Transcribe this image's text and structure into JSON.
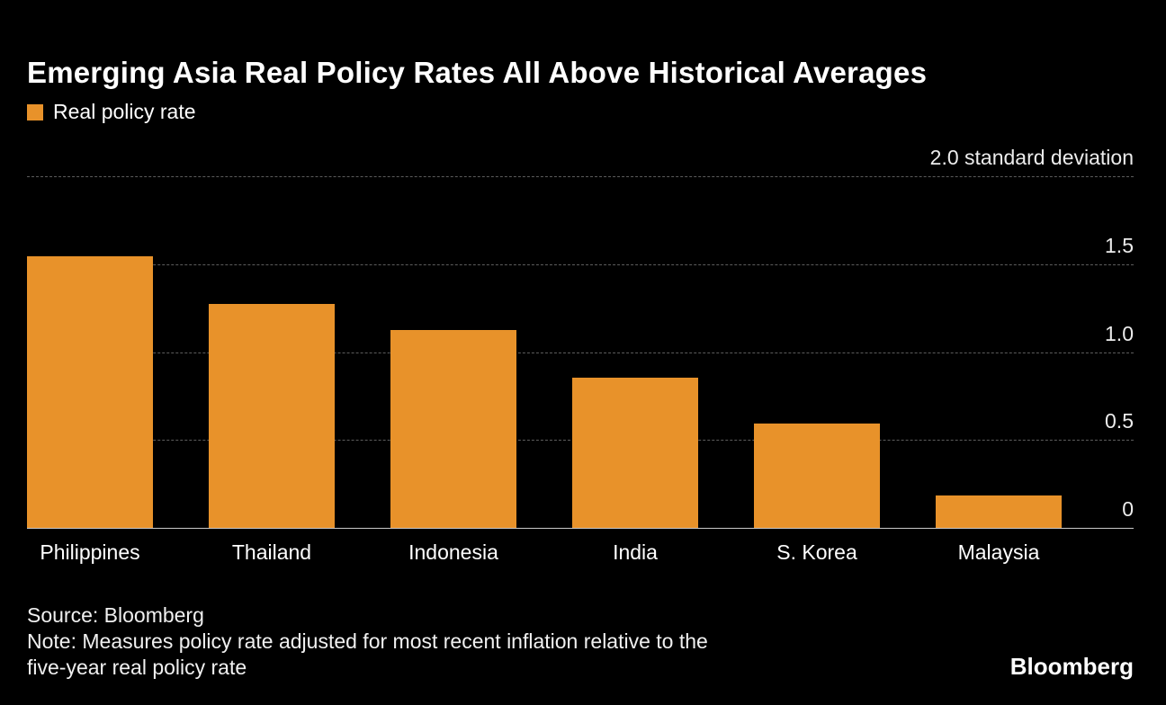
{
  "header": {
    "title": "Emerging Asia Real Policy Rates All Above Historical Averages",
    "legend_label": "Real policy rate"
  },
  "colors": {
    "background": "#000000",
    "bar": "#E8922A",
    "gridline": "#5C5C5C",
    "axis_line": "#C9C9C9",
    "text": "#FFFFFF"
  },
  "chart_data": {
    "type": "bar",
    "title": "Emerging Asia Real Policy Rates All Above Historical Averages",
    "series_name": "Real policy rate",
    "categories": [
      "Philippines",
      "Thailand",
      "Indonesia",
      "India",
      "S. Korea",
      "Malaysia"
    ],
    "values": [
      1.55,
      1.28,
      1.13,
      0.86,
      0.6,
      0.19
    ],
    "ylim": [
      0,
      2.0
    ],
    "yticks": [
      0,
      0.5,
      1.0,
      1.5,
      2.0
    ],
    "ytick_labels": [
      "0",
      "0.5",
      "1.0",
      "1.5",
      "2.0 standard deviation"
    ],
    "grid": "dashed-horizontal",
    "legend_position": "top-left",
    "bar_color": "#E8922A"
  },
  "footer": {
    "source": "Source: Bloomberg",
    "note_lines": [
      "Note: Measures policy rate adjusted for most recent inflation relative to the",
      "five-year real policy rate"
    ],
    "logo": "Bloomberg"
  }
}
